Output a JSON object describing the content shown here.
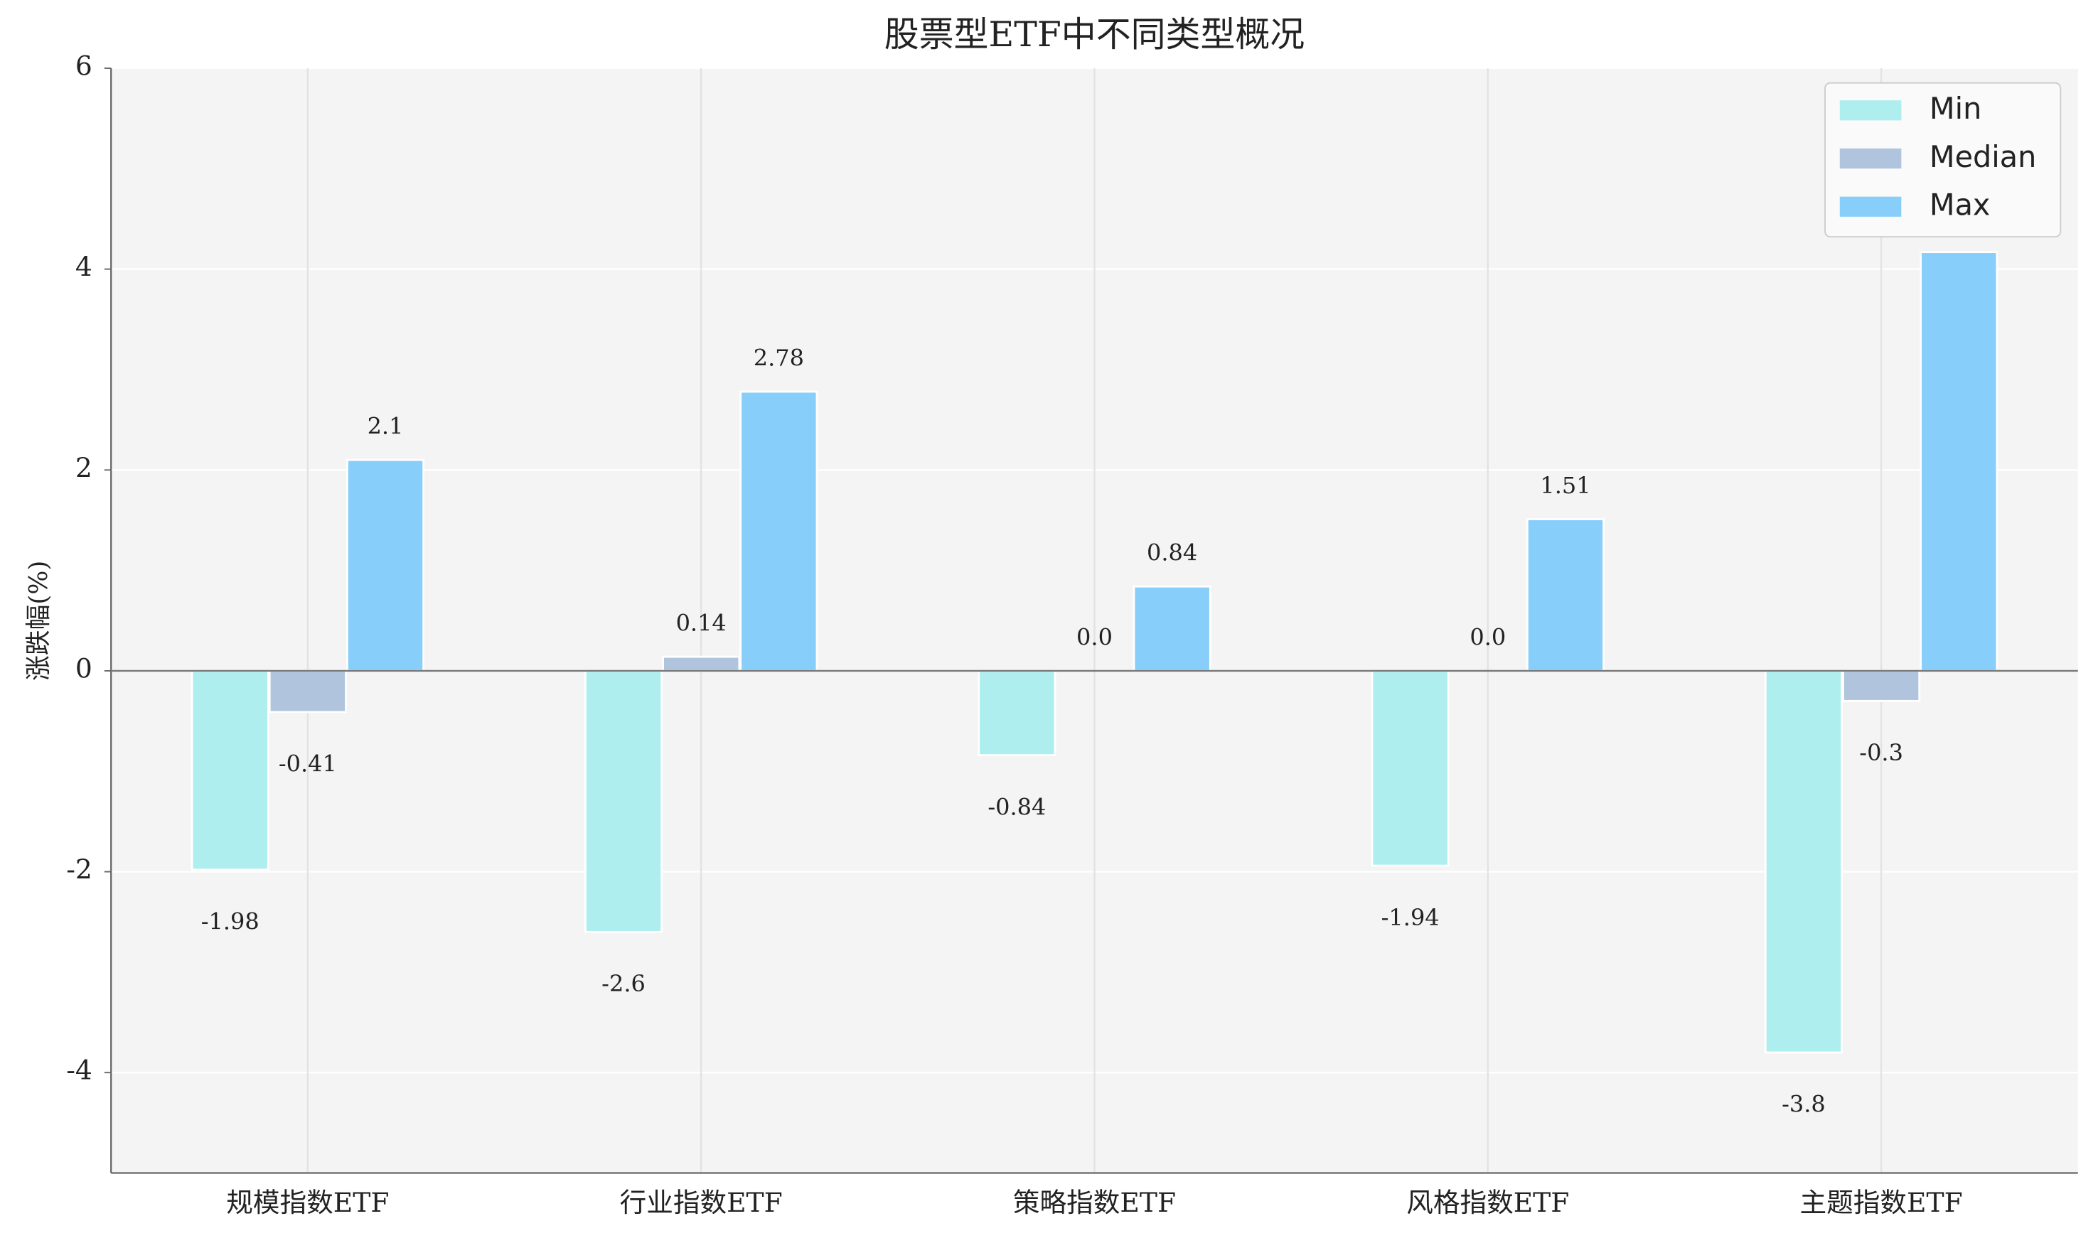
{
  "chart_data": {
    "type": "bar",
    "title": "股票型ETF中不同类型概况",
    "y_label": "涨跌幅(%)",
    "categories": [
      "规模指数ETF",
      "行业指数ETF",
      "策略指数ETF",
      "风格指数ETF",
      "主题指数ETF"
    ],
    "series": [
      {
        "name": "Min",
        "color": "#afeeee",
        "values": [
          -1.98,
          -2.6,
          -0.84,
          -1.94,
          -3.8
        ]
      },
      {
        "name": "Median",
        "color": "#b0c4de",
        "values": [
          -0.41,
          0.14,
          0,
          0,
          -0.3
        ],
        "value_labels": [
          "-0.41",
          "0.14",
          "0.0",
          "0.0",
          "-0.3"
        ]
      },
      {
        "name": "Max",
        "color": "#87cefa",
        "values": [
          2.1,
          2.78,
          0.84,
          1.51,
          4.17
        ]
      }
    ],
    "ylim": [
      -5,
      6
    ],
    "yticks": [
      -4,
      -2,
      0,
      2,
      4,
      6
    ],
    "grid": true,
    "legend": "upper right"
  }
}
